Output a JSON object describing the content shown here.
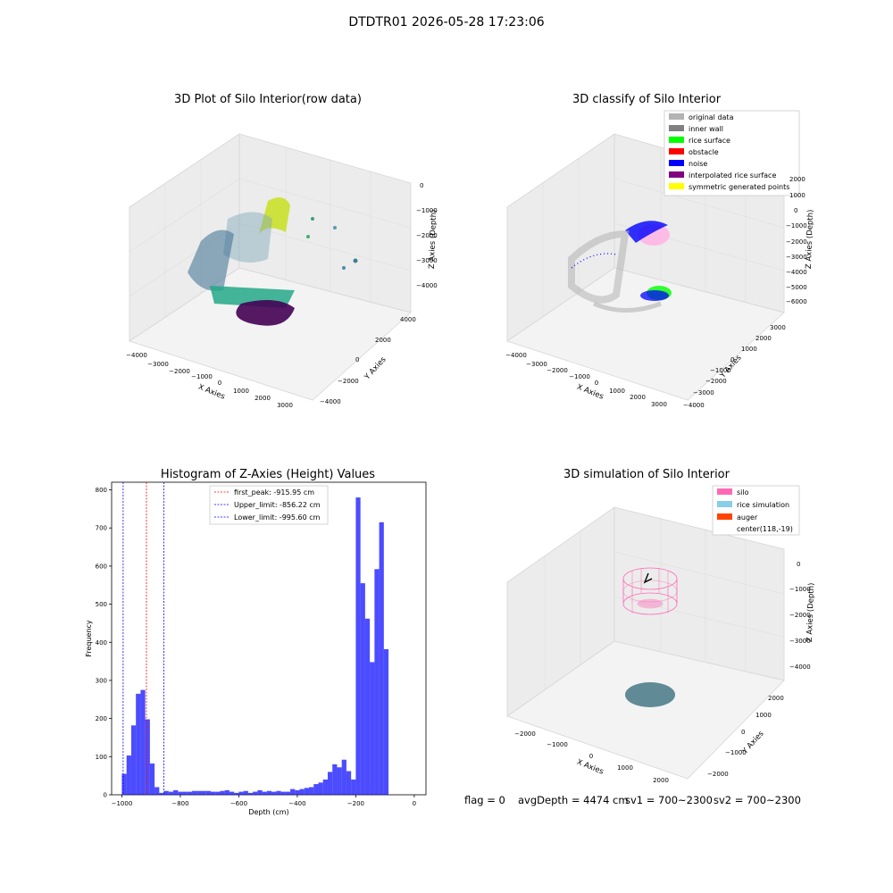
{
  "suptitle": "DTDTR01 2026-05-28 17:23:06",
  "panels": {
    "raw": {
      "title": "3D Plot of Silo Interior(row data)",
      "x_label": "X Axies",
      "y_label": "Y Axies",
      "z_label": "Z Axies (Depth)",
      "x_ticks": [
        "−4000",
        "−3000",
        "−2000",
        "−1000",
        "0",
        "1000",
        "2000",
        "3000"
      ],
      "y_ticks": [
        "4000",
        "2000",
        "0",
        "−2000",
        "−4000"
      ],
      "z_ticks": [
        "0",
        "−1000",
        "−2000",
        "−3000",
        "−4000"
      ]
    },
    "classify": {
      "title": "3D classify of Silo Interior",
      "x_label": "X Axies",
      "y_label": "Y Axies",
      "z_label": "Z Axies (Depth)",
      "x_ticks": [
        "−4000",
        "−3000",
        "−2000",
        "−1000",
        "0",
        "1000",
        "2000",
        "3000"
      ],
      "y_ticks": [
        "3000",
        "2000",
        "1000",
        "0",
        "−1000",
        "−2000",
        "−3000",
        "−4000"
      ],
      "z_ticks": [
        "2000",
        "1000",
        "0",
        "−1000",
        "−2000",
        "−3000",
        "−4000",
        "−5000",
        "−6000"
      ],
      "legend": [
        {
          "label": "original data",
          "color": "#b3b3b3"
        },
        {
          "label": "inner wall",
          "color": "#808080"
        },
        {
          "label": "rice surface",
          "color": "#00ff00"
        },
        {
          "label": "obstacle",
          "color": "#ff0000"
        },
        {
          "label": "noise",
          "color": "#0000ff"
        },
        {
          "label": "interpolated rice surface",
          "color": "#800080"
        },
        {
          "label": "symmetric generated points",
          "color": "#ffff00"
        }
      ]
    },
    "simulation": {
      "title": "3D simulation of Silo Interior",
      "x_label": "X Axies",
      "y_label": "Y Axies",
      "z_label": "Z Axies (Depth)",
      "x_ticks": [
        "−2000",
        "−1000",
        "0",
        "1000",
        "2000"
      ],
      "y_ticks": [
        "2000",
        "1000",
        "0",
        "−1000",
        "−2000"
      ],
      "z_ticks": [
        "0",
        "−1000",
        "−2000",
        "−3000",
        "−4000"
      ],
      "legend": [
        {
          "label": "silo",
          "color": "#ff69b4"
        },
        {
          "label": "rice simulation",
          "color": "#87ceeb"
        },
        {
          "label": "auger",
          "color": "#ff4500"
        },
        {
          "label": "center(118,-19)",
          "color": ""
        }
      ]
    }
  },
  "status": {
    "flag": "flag = 0",
    "avg_depth": "avgDepth = 4474 cm",
    "sv1": "sv1 = 700~2300",
    "sv2": "sv2 = 700~2300"
  },
  "chart_data": {
    "type": "bar",
    "title": "Histogram of Z-Axies (Height) Values",
    "xlabel": "Depth (cm)",
    "ylabel": "Frequency",
    "xlim": [
      -1035,
      40
    ],
    "ylim": [
      0,
      820
    ],
    "x_ticks": [
      -1000,
      -800,
      -600,
      -400,
      -200,
      0
    ],
    "x_tick_labels": [
      "−1000",
      "−800",
      "−600",
      "−400",
      "−200",
      "0"
    ],
    "y_ticks": [
      0,
      100,
      200,
      300,
      400,
      500,
      600,
      700,
      800
    ],
    "bar_color": "#0000ff",
    "bins": [
      [
        -1000,
        -984,
        55
      ],
      [
        -984,
        -968,
        103
      ],
      [
        -968,
        -952,
        182
      ],
      [
        -952,
        -936,
        265
      ],
      [
        -936,
        -920,
        275
      ],
      [
        -920,
        -904,
        198
      ],
      [
        -904,
        -888,
        82
      ],
      [
        -888,
        -872,
        20
      ],
      [
        -872,
        -856,
        5
      ],
      [
        -856,
        -840,
        10
      ],
      [
        -840,
        -824,
        8
      ],
      [
        -824,
        -808,
        12
      ],
      [
        -808,
        -792,
        8
      ],
      [
        -792,
        -776,
        8
      ],
      [
        -776,
        -760,
        8
      ],
      [
        -760,
        -744,
        10
      ],
      [
        -744,
        -728,
        10
      ],
      [
        -728,
        -712,
        10
      ],
      [
        -712,
        -696,
        10
      ],
      [
        -696,
        -680,
        8
      ],
      [
        -680,
        -664,
        8
      ],
      [
        -664,
        -648,
        10
      ],
      [
        -648,
        -632,
        12
      ],
      [
        -632,
        -616,
        8
      ],
      [
        -616,
        -600,
        5
      ],
      [
        -600,
        -584,
        8
      ],
      [
        -584,
        -568,
        10
      ],
      [
        -568,
        -552,
        5
      ],
      [
        -552,
        -536,
        8
      ],
      [
        -536,
        -520,
        12
      ],
      [
        -520,
        -504,
        8
      ],
      [
        -504,
        -488,
        10
      ],
      [
        -488,
        -472,
        8
      ],
      [
        -472,
        -456,
        10
      ],
      [
        -456,
        -440,
        8
      ],
      [
        -440,
        -424,
        8
      ],
      [
        -424,
        -408,
        15
      ],
      [
        -408,
        -392,
        12
      ],
      [
        -392,
        -376,
        15
      ],
      [
        -376,
        -360,
        18
      ],
      [
        -360,
        -344,
        20
      ],
      [
        -344,
        -328,
        28
      ],
      [
        -328,
        -312,
        32
      ],
      [
        -312,
        -296,
        40
      ],
      [
        -296,
        -280,
        60
      ],
      [
        -280,
        -264,
        80
      ],
      [
        -264,
        -248,
        72
      ],
      [
        -248,
        -232,
        92
      ],
      [
        -232,
        -216,
        62
      ],
      [
        -216,
        -200,
        40
      ],
      [
        -200,
        -184,
        780
      ],
      [
        -184,
        -168,
        555
      ],
      [
        -168,
        -152,
        462
      ],
      [
        -152,
        -136,
        348
      ],
      [
        -136,
        -120,
        592
      ],
      [
        -120,
        -104,
        715
      ],
      [
        -104,
        -88,
        382
      ]
    ],
    "lines": [
      {
        "label": "first_peak: -915.95 cm",
        "x": -915.95,
        "color": "#ff0000"
      },
      {
        "label": "Upper_limit: -856.22 cm",
        "x": -856.22,
        "color": "#0000ff"
      },
      {
        "label": "Lower_limit: -995.60 cm",
        "x": -995.6,
        "color": "#0000ff"
      }
    ],
    "legend_position": "top-center"
  }
}
